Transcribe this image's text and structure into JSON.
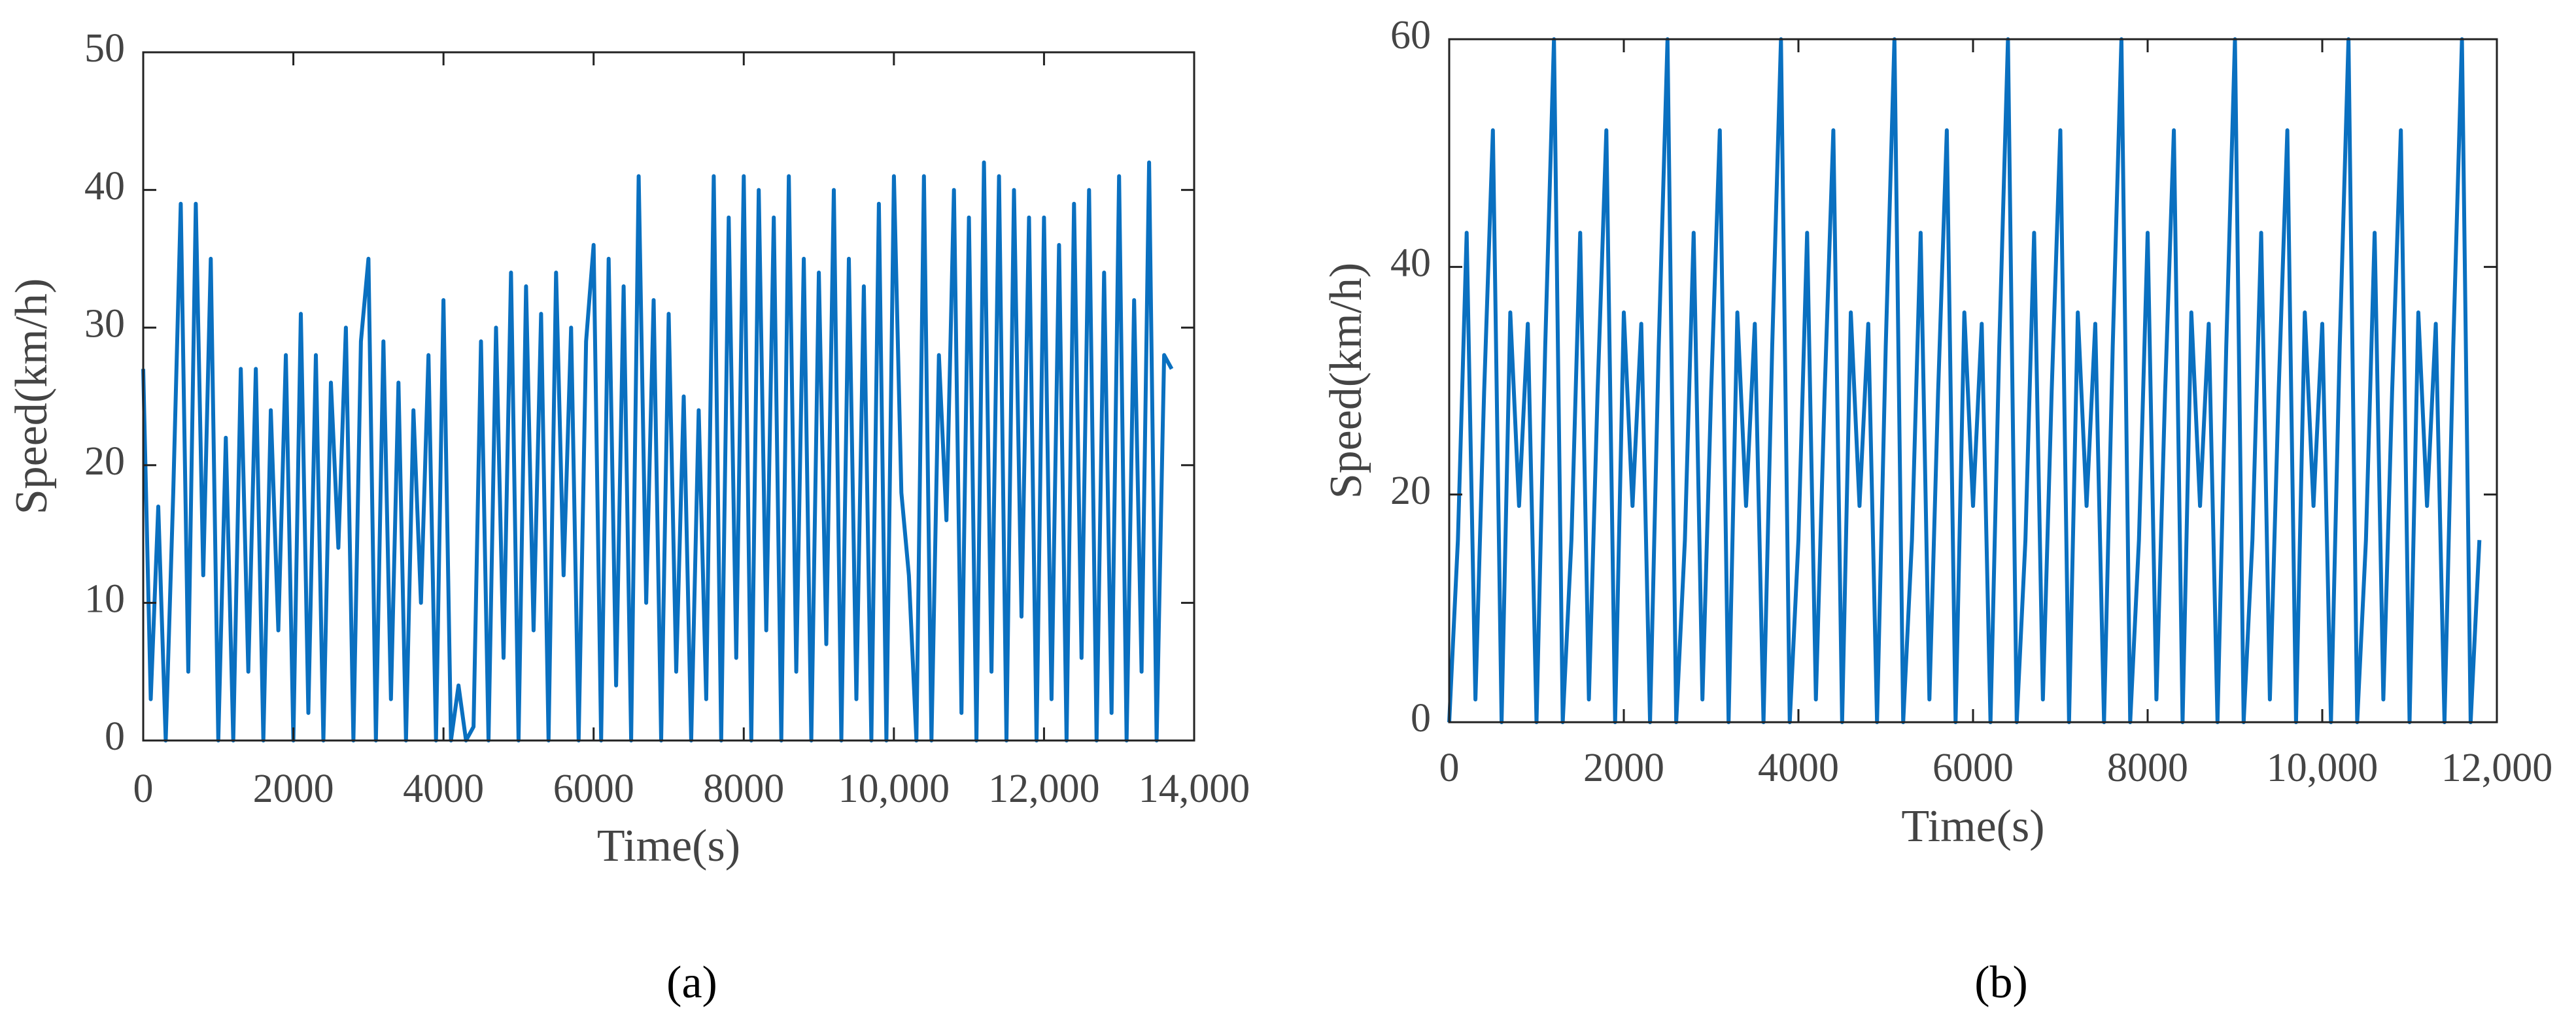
{
  "chart_data": [
    {
      "type": "line",
      "caption": "(a)",
      "xlabel": "Time(s)",
      "ylabel": "Speed(km/h)",
      "xlim": [
        0,
        14000
      ],
      "ylim": [
        0,
        50
      ],
      "xticks": [
        0,
        2000,
        4000,
        6000,
        8000,
        {
          "value": 10000,
          "label": "10,000"
        },
        {
          "value": 12000,
          "label": "12,000"
        },
        {
          "value": 14000,
          "label": "14,000"
        }
      ],
      "yticks": [
        0,
        10,
        20,
        30,
        40,
        50
      ],
      "x": [
        0,
        100,
        200,
        300,
        400,
        500,
        600,
        700,
        800,
        900,
        1000,
        1100,
        1200,
        1300,
        1400,
        1500,
        1600,
        1700,
        1800,
        1900,
        2000,
        2100,
        2200,
        2300,
        2400,
        2500,
        2600,
        2700,
        2800,
        2900,
        3000,
        3100,
        3200,
        3300,
        3400,
        3500,
        3600,
        3700,
        3800,
        3900,
        4000,
        4100,
        4200,
        4300,
        4400,
        4500,
        4600,
        4700,
        4800,
        4900,
        5000,
        5100,
        5200,
        5300,
        5400,
        5500,
        5600,
        5700,
        5800,
        5900,
        6000,
        6100,
        6200,
        6300,
        6400,
        6500,
        6600,
        6700,
        6800,
        6900,
        7000,
        7100,
        7200,
        7300,
        7400,
        7500,
        7600,
        7700,
        7800,
        7900,
        8000,
        8100,
        8200,
        8300,
        8400,
        8500,
        8600,
        8700,
        8800,
        8900,
        9000,
        9100,
        9200,
        9300,
        9400,
        9500,
        9600,
        9700,
        9800,
        9900,
        10000,
        10100,
        10200,
        10300,
        10400,
        10500,
        10600,
        10700,
        10800,
        10900,
        11000,
        11100,
        11200,
        11300,
        11400,
        11500,
        11600,
        11700,
        11800,
        11900,
        12000,
        12100,
        12200,
        12300,
        12400,
        12500,
        12600,
        12700,
        12800,
        12900,
        13000,
        13100,
        13200,
        13300,
        13400,
        13500,
        13600,
        13700
      ],
      "series": [
        {
          "color": "#0a70c0",
          "values": [
            27,
            3,
            17,
            0,
            18,
            39,
            5,
            39,
            12,
            35,
            0,
            22,
            0,
            27,
            5,
            27,
            0,
            24,
            8,
            28,
            0,
            31,
            2,
            28,
            0,
            26,
            14,
            30,
            0,
            29,
            35,
            0,
            29,
            3,
            26,
            0,
            24,
            10,
            28,
            0,
            32,
            0,
            4,
            0,
            1,
            29,
            0,
            30,
            6,
            34,
            0,
            33,
            8,
            31,
            0,
            34,
            12,
            30,
            0,
            29,
            36,
            0,
            35,
            4,
            33,
            0,
            41,
            10,
            32,
            0,
            31,
            5,
            25,
            0,
            24,
            3,
            41,
            0,
            38,
            6,
            41,
            0,
            40,
            8,
            38,
            0,
            41,
            5,
            35,
            0,
            34,
            7,
            40,
            0,
            35,
            3,
            33,
            0,
            39,
            0,
            41,
            18,
            12,
            0,
            41,
            0,
            28,
            16,
            40,
            2,
            38,
            0,
            42,
            5,
            41,
            0,
            40,
            9,
            38,
            0,
            38,
            3,
            36,
            0,
            39,
            6,
            40,
            0,
            34,
            2,
            41,
            0,
            32,
            5,
            42,
            0,
            28,
            27
          ]
        }
      ]
    },
    {
      "type": "line",
      "caption": "(b)",
      "xlabel": "Time(s)",
      "ylabel": "Speed(km/h)",
      "xlim": [
        0,
        12000
      ],
      "ylim": [
        0,
        60
      ],
      "xticks": [
        0,
        2000,
        4000,
        6000,
        8000,
        {
          "value": 10000,
          "label": "10,000"
        },
        {
          "value": 12000,
          "label": "12,000"
        }
      ],
      "yticks": [
        0,
        20,
        40,
        60
      ],
      "x": [
        0,
        100,
        200,
        300,
        400,
        500,
        600,
        700,
        800,
        900,
        1000,
        1100,
        1200,
        1300,
        1400,
        1500,
        1600,
        1700,
        1800,
        1900,
        2000,
        2100,
        2200,
        2300,
        2400,
        2500,
        2600,
        2700,
        2800,
        2900,
        3000,
        3100,
        3200,
        3300,
        3400,
        3500,
        3600,
        3700,
        3800,
        3900,
        4000,
        4100,
        4200,
        4300,
        4400,
        4500,
        4600,
        4700,
        4800,
        4900,
        5000,
        5100,
        5200,
        5300,
        5400,
        5500,
        5600,
        5700,
        5800,
        5900,
        6000,
        6100,
        6200,
        6300,
        6400,
        6500,
        6600,
        6700,
        6800,
        6900,
        7000,
        7100,
        7200,
        7300,
        7400,
        7500,
        7600,
        7700,
        7800,
        7900,
        8000,
        8100,
        8200,
        8300,
        8400,
        8500,
        8600,
        8700,
        8800,
        8900,
        9000,
        9100,
        9200,
        9300,
        9400,
        9500,
        9600,
        9700,
        9800,
        9900,
        10000,
        10100,
        10200,
        10300,
        10400,
        10500,
        10600,
        10700,
        10800,
        10900,
        11000,
        11100,
        11200,
        11300,
        11400,
        11500,
        11600,
        11700,
        11800
      ],
      "series": [
        {
          "color": "#0a70c0",
          "values": [
            0,
            16,
            43,
            2,
            29,
            52,
            0,
            36,
            19,
            35,
            0,
            33,
            60,
            0,
            16,
            43,
            2,
            29,
            52,
            0,
            36,
            19,
            35,
            0,
            33,
            60,
            0,
            16,
            43,
            2,
            29,
            52,
            0,
            36,
            19,
            35,
            0,
            33,
            60,
            0,
            16,
            43,
            2,
            29,
            52,
            0,
            36,
            19,
            35,
            0,
            33,
            60,
            0,
            16,
            43,
            2,
            29,
            52,
            0,
            36,
            19,
            35,
            0,
            33,
            60,
            0,
            16,
            43,
            2,
            29,
            52,
            0,
            36,
            19,
            35,
            0,
            33,
            60,
            0,
            16,
            43,
            2,
            29,
            52,
            0,
            36,
            19,
            35,
            0,
            33,
            60,
            0,
            16,
            43,
            2,
            29,
            52,
            0,
            36,
            19,
            35,
            0,
            33,
            60,
            0,
            16,
            43,
            2,
            29,
            52,
            0,
            36,
            19,
            35,
            0,
            33,
            60,
            0,
            16
          ]
        }
      ]
    }
  ]
}
